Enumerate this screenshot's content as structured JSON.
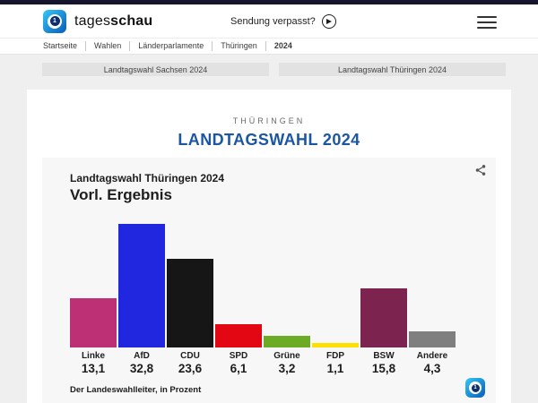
{
  "header": {
    "brand_light": "tages",
    "brand_bold": "schau",
    "sendung_verpasst": "Sendung verpasst?"
  },
  "breadcrumb": {
    "items": [
      "Startseite",
      "Wahlen",
      "Länderparlamente",
      "Thüringen",
      "2024"
    ]
  },
  "tabs": [
    {
      "label": "Landtagswahl Sachsen 2024"
    },
    {
      "label": "Landtagswahl Thüringen 2024"
    }
  ],
  "page": {
    "kicker": "THÜRINGEN",
    "title": "LANDTAGSWAHL 2024"
  },
  "chart_data": {
    "type": "bar",
    "title": "Landtagswahl Thüringen 2024",
    "subtitle": "Vorl. Ergebnis",
    "categories": [
      "Linke",
      "AfD",
      "CDU",
      "SPD",
      "Grüne",
      "FDP",
      "BSW",
      "Andere"
    ],
    "values": [
      13.1,
      32.8,
      23.6,
      6.1,
      3.2,
      1.1,
      15.8,
      4.3
    ],
    "display_values": [
      "13,1",
      "32,8",
      "23,6",
      "6,1",
      "3,2",
      "1,1",
      "15,8",
      "4,3"
    ],
    "bar_colors": [
      "#be3075",
      "#2127de",
      "#161616",
      "#e30613",
      "#6cab26",
      "#ffdf00",
      "#7d2350",
      "#7f7f7f"
    ],
    "xlabel": "",
    "ylabel": "",
    "ylim": [
      0,
      35
    ],
    "grid": false,
    "legend": false,
    "source": "Der Landeswahlleiter, in Prozent",
    "accent_color": "#1b56a5"
  }
}
